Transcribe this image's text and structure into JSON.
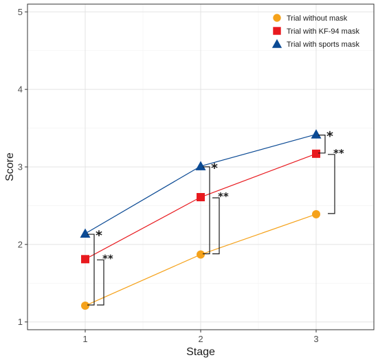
{
  "chart_data": {
    "type": "line",
    "title": "",
    "xlabel": "Stage",
    "ylabel": "Score",
    "categories": [
      1,
      2,
      3
    ],
    "xlim": [
      0.5,
      3.5
    ],
    "ylim": [
      0.9,
      5.1
    ],
    "yticks": [
      1,
      2,
      3,
      4,
      5
    ],
    "grid": true,
    "legend_position": "top-right",
    "series": [
      {
        "name": "Trial without mask",
        "color": "#f5a21b",
        "marker": "circle",
        "values": [
          1.21,
          1.87,
          2.39
        ]
      },
      {
        "name": "Trial with KF-94 mask",
        "color": "#e8191e",
        "marker": "square",
        "values": [
          1.81,
          2.61,
          3.17
        ]
      },
      {
        "name": "Trial with sports mask",
        "color": "#0b4a94",
        "marker": "triangle",
        "values": [
          2.14,
          3.01,
          3.42
        ]
      }
    ],
    "annotations": [
      {
        "stage": 1,
        "from": "Trial without mask",
        "to": "Trial with KF-94 mask",
        "label": "**"
      },
      {
        "stage": 1,
        "from": "Trial without mask",
        "to": "Trial with sports mask",
        "label": "*"
      },
      {
        "stage": 2,
        "from": "Trial without mask",
        "to": "Trial with KF-94 mask",
        "label": "**"
      },
      {
        "stage": 2,
        "from": "Trial without mask",
        "to": "Trial with sports mask",
        "label": "*"
      },
      {
        "stage": 3,
        "from": "Trial without mask",
        "to": "Trial with KF-94 mask",
        "label": "**"
      },
      {
        "stage": 3,
        "from": "Trial with KF-94 mask",
        "to": "Trial with sports mask",
        "label": "*"
      }
    ]
  }
}
